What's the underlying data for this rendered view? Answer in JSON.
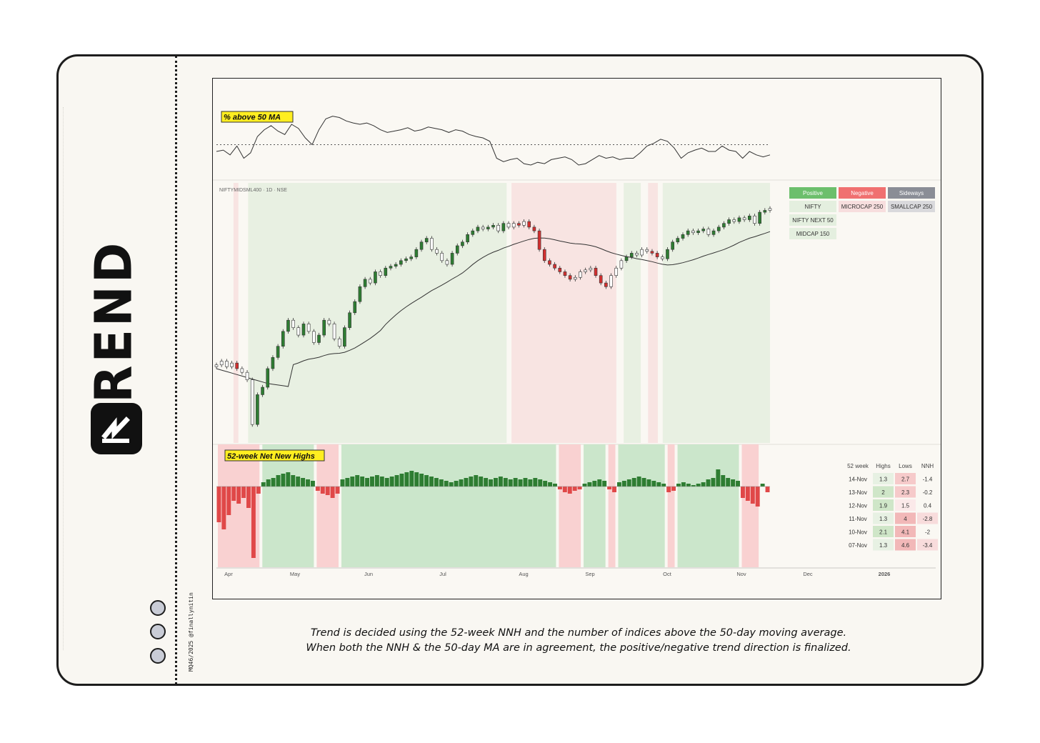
{
  "sidebar": {
    "title": "TREND",
    "credit": "MQ46/2025 @finallynitin",
    "logo_icon": "chart-arrow-icon",
    "page_dots": 3
  },
  "colors": {
    "positive_bg": "#e8f0e2",
    "negative_bg": "#f8e4e2",
    "nnh_positive_bg": "#cbe6cb",
    "nnh_negative_bg": "#f9d1d1",
    "green_candle": "#2e7d32",
    "red_candle": "#d32f2f",
    "positive_header": "#6cbf6c",
    "negative_header": "#f07070",
    "sideways_header": "#8a8d96",
    "label_yellow": "#ffee20"
  },
  "caption": {
    "line1": "Trend is decided using the 52-week NNH and the number of indices above the 50-day moving average.",
    "line2": "When both the NNH & the 50-day MA are in agreement, the positive/negative trend direction is finalized."
  },
  "chart_data": [
    {
      "type": "line",
      "title": "% above 50 MA",
      "series": [
        {
          "values": [
            40,
            42,
            35,
            48,
            30,
            38,
            62,
            72,
            78,
            70,
            65,
            80,
            74,
            60,
            50,
            72,
            88,
            92,
            90,
            85,
            82,
            80,
            82,
            78,
            72,
            68,
            70,
            72,
            75,
            70,
            72,
            76,
            74,
            72,
            68,
            72,
            70,
            65,
            62,
            60,
            55,
            30,
            25,
            28,
            30,
            22,
            20,
            24,
            22,
            28,
            30,
            32,
            28,
            20,
            22,
            28,
            34,
            30,
            32,
            28,
            30,
            30,
            38,
            48,
            52,
            58,
            55,
            45,
            30,
            38,
            42,
            45,
            40,
            40,
            48,
            42,
            40,
            30,
            40,
            35,
            32,
            35
          ]
        }
      ],
      "reference_line": 50,
      "x": "Apr 1 → Nov 14, 2025 (daily)"
    },
    {
      "type": "candlestick",
      "title": "NIFTYMIDSML400 · 1D · NSE",
      "series": [
        {
          "name": "50 MA"
        }
      ],
      "trend_regimes": [
        {
          "from": "Apr-01",
          "to": "Apr-08",
          "state": "neutral"
        },
        {
          "from": "Apr-08",
          "to": "Apr-10",
          "state": "negative"
        },
        {
          "from": "Apr-10",
          "to": "Apr-14",
          "state": "neutral"
        },
        {
          "from": "Apr-14",
          "to": "Jul-29",
          "state": "positive"
        },
        {
          "from": "Jul-29",
          "to": "Jul-31",
          "state": "neutral"
        },
        {
          "from": "Jul-31",
          "to": "Sep-12",
          "state": "negative"
        },
        {
          "from": "Sep-12",
          "to": "Sep-15",
          "state": "neutral"
        },
        {
          "from": "Sep-15",
          "to": "Sep-22",
          "state": "positive"
        },
        {
          "from": "Sep-22",
          "to": "Sep-25",
          "state": "neutral"
        },
        {
          "from": "Sep-25",
          "to": "Sep-29",
          "state": "negative"
        },
        {
          "from": "Sep-29",
          "to": "Oct-01",
          "state": "neutral"
        },
        {
          "from": "Oct-01",
          "to": "Nov-14",
          "state": "positive"
        }
      ],
      "close": [
        16800,
        16900,
        16750,
        16850,
        16700,
        16600,
        16400,
        15200,
        16000,
        16200,
        16700,
        17000,
        17300,
        17700,
        18000,
        17800,
        17600,
        17900,
        17700,
        17400,
        17600,
        18000,
        17900,
        17500,
        17300,
        17800,
        18200,
        18500,
        18900,
        19100,
        19000,
        19300,
        19200,
        19400,
        19450,
        19500,
        19600,
        19650,
        19700,
        19900,
        20100,
        20200,
        19900,
        19800,
        19600,
        19500,
        19800,
        20000,
        20100,
        20300,
        20400,
        20500,
        20450,
        20500,
        20550,
        20400,
        20600,
        20500,
        20600,
        20550,
        20650,
        20500,
        20400,
        19900,
        19600,
        19500,
        19400,
        19300,
        19200,
        19100,
        19150,
        19300,
        19350,
        19400,
        19200,
        19000,
        18900,
        19200,
        19400,
        19600,
        19700,
        19800,
        19750,
        19900,
        19850,
        19800,
        19700,
        19650,
        19900,
        20100,
        20200,
        20300,
        20400,
        20350,
        20400,
        20450,
        20300,
        20400,
        20500,
        20600,
        20700,
        20650,
        20750,
        20700,
        20800,
        20600,
        20900,
        20950,
        21000
      ],
      "x_ticks": [
        "Apr",
        "May",
        "Jun",
        "Jul",
        "Aug",
        "Sep",
        "Oct",
        "Nov",
        "Dec",
        "2026"
      ],
      "table": {
        "headers": [
          "Positive",
          "Negative",
          "Sideways"
        ],
        "rows": [
          [
            "NIFTY",
            "MICROCAP 250",
            "SMALLCAP 250"
          ],
          [
            "NIFTY NEXT 50",
            "",
            ""
          ],
          [
            "MIDCAP 150",
            "",
            ""
          ]
        ]
      }
    },
    {
      "type": "bar",
      "title": "52-week Net New Highs",
      "values": [
        -2.5,
        -3,
        -2,
        -1,
        -1.2,
        -0.8,
        -1.5,
        -5,
        -0.5,
        0.3,
        0.5,
        0.6,
        0.8,
        0.9,
        1.0,
        0.8,
        0.7,
        0.6,
        0.5,
        0.4,
        -0.3,
        -0.5,
        -0.6,
        -0.8,
        -0.5,
        0.5,
        0.6,
        0.7,
        0.8,
        0.7,
        0.6,
        0.7,
        0.8,
        0.7,
        0.6,
        0.7,
        0.8,
        0.9,
        1.0,
        1.1,
        1.0,
        0.9,
        0.8,
        0.7,
        0.6,
        0.5,
        0.4,
        0.3,
        0.4,
        0.5,
        0.6,
        0.7,
        0.8,
        0.7,
        0.6,
        0.5,
        0.6,
        0.7,
        0.6,
        0.5,
        0.6,
        0.5,
        0.6,
        0.5,
        0.6,
        0.5,
        0.4,
        0.3,
        0.2,
        -0.2,
        -0.4,
        -0.5,
        -0.3,
        -0.2,
        0.2,
        0.3,
        0.4,
        0.5,
        0.4,
        -0.2,
        -0.4,
        0.3,
        0.4,
        0.5,
        0.6,
        0.7,
        0.6,
        0.5,
        0.4,
        0.3,
        0.2,
        -0.4,
        -0.3,
        0.2,
        0.3,
        0.2,
        0.1,
        0.2,
        0.3,
        0.5,
        0.6,
        1.2,
        0.8,
        0.6,
        0.5,
        0.4,
        -0.8,
        -1.0,
        -1.2,
        -1.4,
        0.2,
        -0.4
      ],
      "x_ticks": [
        "Apr",
        "May",
        "Jun",
        "Jul",
        "Aug",
        "Sep",
        "Oct",
        "Nov",
        "Dec",
        "2026"
      ],
      "table": {
        "headers": [
          "52 week",
          "Highs",
          "Lows",
          "NNH"
        ],
        "rows": [
          [
            "14-Nov",
            "1.3",
            "2.7",
            "-1.4"
          ],
          [
            "13-Nov",
            "2",
            "2.3",
            "-0.2"
          ],
          [
            "12-Nov",
            "1.9",
            "1.5",
            "0.4"
          ],
          [
            "11-Nov",
            "1.3",
            "4",
            "-2.8"
          ],
          [
            "10-Nov",
            "2.1",
            "4.1",
            "-2"
          ],
          [
            "07-Nov",
            "1.3",
            "4.6",
            "-3.4"
          ]
        ]
      }
    }
  ]
}
